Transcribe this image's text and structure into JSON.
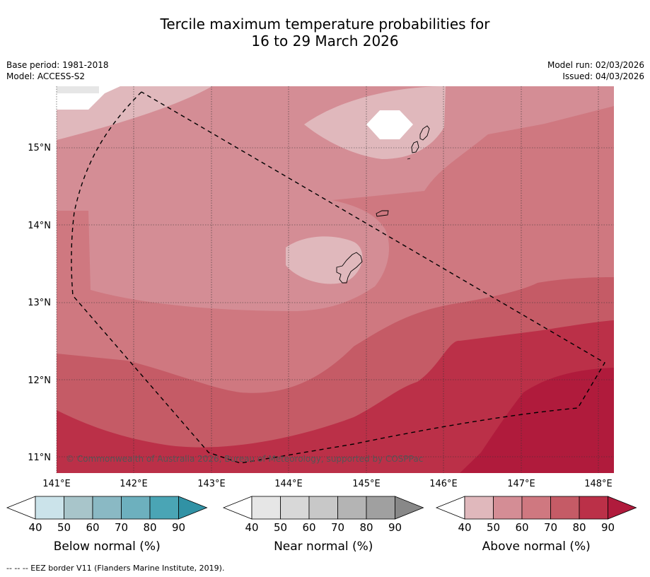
{
  "title": {
    "line1": "Tercile maximum temperature probabilities for",
    "line2": "16 to 29 March 2026"
  },
  "meta": {
    "base_period": "Base period: 1981-2018",
    "model": "Model: ACCESS-S2",
    "model_run": "Model run: 02/03/2026",
    "issued": "Issued: 04/03/2026"
  },
  "axes": {
    "lat_labels": [
      "15°N",
      "14°N",
      "13°N",
      "12°N",
      "11°N"
    ],
    "lon_labels": [
      "141°E",
      "142°E",
      "143°E",
      "144°E",
      "145°E",
      "146°E",
      "147°E",
      "148°E"
    ]
  },
  "copyright": "© Commonwealth of Australia 2026, Bureau of Meteorology, supported by COSPPac",
  "legends": [
    {
      "label": "Below normal (%)",
      "ticks": [
        "40",
        "50",
        "60",
        "70",
        "80",
        "90"
      ],
      "colors": [
        "#cbe3ea",
        "#a8c5ca",
        "#8ab9c4",
        "#6db0be",
        "#4aa5b5",
        "#3192a5"
      ]
    },
    {
      "label": "Near normal (%)",
      "ticks": [
        "40",
        "50",
        "60",
        "70",
        "80",
        "90"
      ],
      "colors": [
        "#e6e6e6",
        "#d8d8d8",
        "#c8c8c8",
        "#b4b4b4",
        "#a0a0a0",
        "#888888"
      ]
    },
    {
      "label": "Above normal (%)",
      "ticks": [
        "40",
        "50",
        "60",
        "70",
        "80",
        "90"
      ],
      "colors": [
        "#e0b8bc",
        "#d48d95",
        "#cf7880",
        "#c55b66",
        "#bb3048",
        "#b01b3c"
      ]
    }
  ],
  "footer": "--  --  -- EEZ border V11 (Flanders Marine Institute, 2019)."
}
